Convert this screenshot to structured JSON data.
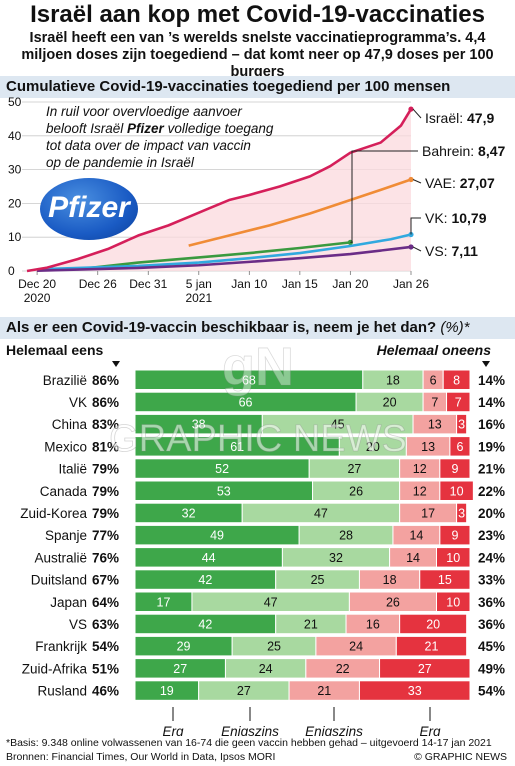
{
  "title": "Israël aan kop met Covid-19-vaccinaties",
  "subtitle": "Israël heeft een van ’s werelds snelste vaccinatieprogramma’s. 4,4 miljoen doses zijn toegediend – dat komt neer op 47,9 doses per 100 burgers",
  "colors": {
    "israel": "#d51f5a",
    "uae": "#f08c36",
    "bahrain": "#3a9a3f",
    "uk": "#31a9df",
    "us": "#6b2d87",
    "erg_eens": "#3ea74a",
    "enigszins_eens": "#a8d9a0",
    "enigszins_oneens": "#f3a2a0",
    "erg_oneens": "#e5333f",
    "band": "#dde7f1"
  },
  "chart1": {
    "band_title": "Cumulatieve Covid-19-vaccinaties toegediend per 100 mensen",
    "annotation": [
      "In ruil voor overvloedige aanvoer",
      "belooft Israël ",
      "Pfizer",
      " volledige toegang",
      "tot data over de impact van vaccin",
      "op de pandemie in Israël"
    ],
    "logo_text": "Pfizer",
    "chart_data": {
      "type": "line",
      "x_tick_labels": [
        "Dec 20\n2020",
        "Dec 26",
        "Dec 31",
        "5 jan\n2021",
        "Jan 10",
        "Jan 15",
        "Jan 20",
        "Jan 26"
      ],
      "x_tick_dates": [
        "2020-12-20",
        "2020-12-26",
        "2020-12-31",
        "2021-01-05",
        "2021-01-10",
        "2021-01-15",
        "2021-01-20",
        "2021-01-26"
      ],
      "ylim": [
        0,
        50
      ],
      "y_ticks": [
        0,
        10,
        20,
        30,
        40,
        50
      ],
      "grid": true,
      "series": [
        {
          "name": "Israël",
          "label_value": "47,9",
          "color_key": "israel",
          "points": [
            [
              "2020-12-19",
              0
            ],
            [
              "2020-12-21",
              1
            ],
            [
              "2020-12-24",
              3.5
            ],
            [
              "2020-12-27",
              6.5
            ],
            [
              "2020-12-30",
              10.5
            ],
            [
              "2021-01-02",
              13.5
            ],
            [
              "2021-01-04",
              16
            ],
            [
              "2021-01-06",
              18.5
            ],
            [
              "2021-01-08",
              21
            ],
            [
              "2021-01-10",
              22.5
            ],
            [
              "2021-01-13",
              25
            ],
            [
              "2021-01-16",
              28
            ],
            [
              "2021-01-18",
              31
            ],
            [
              "2021-01-20",
              35
            ],
            [
              "2021-01-23",
              38
            ],
            [
              "2021-01-25",
              43
            ],
            [
              "2021-01-26",
              47.9
            ]
          ]
        },
        {
          "name": "VAE",
          "label_value": "27,07",
          "color_key": "uae",
          "points": [
            [
              "2021-01-04",
              7.5
            ],
            [
              "2021-01-08",
              10.5
            ],
            [
              "2021-01-12",
              13.5
            ],
            [
              "2021-01-16",
              17
            ],
            [
              "2021-01-20",
              21
            ],
            [
              "2021-01-23",
              24
            ],
            [
              "2021-01-26",
              27.07
            ]
          ]
        },
        {
          "name": "Bahrein",
          "label_value": "8,47",
          "color_key": "bahrain",
          "points": [
            [
              "2020-12-24",
              0.5
            ],
            [
              "2020-12-30",
              2.5
            ],
            [
              "2021-01-05",
              4
            ],
            [
              "2021-01-10",
              5.3
            ],
            [
              "2021-01-15",
              6.8
            ],
            [
              "2021-01-20",
              8.47
            ]
          ]
        },
        {
          "name": "VK",
          "label_value": "10,79",
          "color_key": "uk",
          "points": [
            [
              "2020-12-20",
              0.5
            ],
            [
              "2020-12-30",
              1.5
            ],
            [
              "2021-01-05",
              2.5
            ],
            [
              "2021-01-10",
              3.8
            ],
            [
              "2021-01-15",
              5.3
            ],
            [
              "2021-01-20",
              7.4
            ],
            [
              "2021-01-24",
              9.4
            ],
            [
              "2021-01-26",
              10.79
            ]
          ]
        },
        {
          "name": "VS",
          "label_value": "7,11",
          "color_key": "us",
          "points": [
            [
              "2020-12-20",
              0.1
            ],
            [
              "2020-12-30",
              0.9
            ],
            [
              "2021-01-05",
              1.7
            ],
            [
              "2021-01-10",
              2.7
            ],
            [
              "2021-01-15",
              3.8
            ],
            [
              "2021-01-20",
              5.0
            ],
            [
              "2021-01-26",
              7.11
            ]
          ]
        }
      ]
    }
  },
  "chart2": {
    "band_title": "Als er een Covid-19-vaccin beschikbaar is, neem je het dan?",
    "band_suffix": " (%)*",
    "left_header": "Helemaal eens",
    "right_header": "Helemaal oneens",
    "cat_labels": [
      [
        "Erg",
        "mee eens"
      ],
      [
        "Enigszins",
        "mee eens"
      ],
      [
        "Enigszins",
        "mee oneens"
      ],
      [
        "Erg",
        "mee oneens"
      ]
    ],
    "chart_data": {
      "type": "bar",
      "stacked": true,
      "orientation": "horizontal",
      "categories": [
        "Brazilië",
        "VK",
        "China",
        "Mexico",
        "Italië",
        "Canada",
        "Zuid-Korea",
        "Spanje",
        "Australië",
        "Duitsland",
        "Japan",
        "VS",
        "Frankrijk",
        "Zuid-Afrika",
        "Rusland"
      ],
      "series": [
        {
          "name": "Erg mee eens",
          "color_key": "erg_eens",
          "values": [
            68,
            66,
            38,
            61,
            52,
            53,
            32,
            49,
            44,
            42,
            17,
            42,
            29,
            27,
            19
          ]
        },
        {
          "name": "Enigszins mee eens",
          "color_key": "enigszins_eens",
          "values": [
            18,
            20,
            45,
            20,
            27,
            26,
            47,
            28,
            32,
            25,
            47,
            21,
            25,
            24,
            27
          ]
        },
        {
          "name": "Enigszins mee oneens",
          "color_key": "enigszins_oneens",
          "values": [
            6,
            7,
            13,
            13,
            12,
            12,
            17,
            14,
            14,
            18,
            26,
            16,
            24,
            22,
            21
          ]
        },
        {
          "name": "Erg mee oneens",
          "color_key": "erg_oneens",
          "values": [
            8,
            7,
            3,
            6,
            9,
            10,
            3,
            9,
            10,
            15,
            10,
            20,
            21,
            27,
            33
          ]
        }
      ],
      "totals_eens": [
        "86%",
        "86%",
        "83%",
        "81%",
        "79%",
        "79%",
        "79%",
        "77%",
        "76%",
        "67%",
        "64%",
        "63%",
        "54%",
        "51%",
        "46%"
      ],
      "totals_oneens": [
        "14%",
        "14%",
        "16%",
        "19%",
        "21%",
        "22%",
        "20%",
        "23%",
        "24%",
        "33%",
        "36%",
        "36%",
        "45%",
        "49%",
        "54%"
      ]
    }
  },
  "footer": {
    "basis": "*Basis: 9.348 online volwassenen van 16-74 die geen vaccin hebben gehad – uitgevoerd 14-17 jan 2021",
    "sources": "Bronnen: Financial Times, Our World in Data, Ipsos MORI",
    "copyright": "© GRAPHIC NEWS"
  },
  "watermark": {
    "text": "GRAPHIC NEWS",
    "mark": "gN"
  }
}
